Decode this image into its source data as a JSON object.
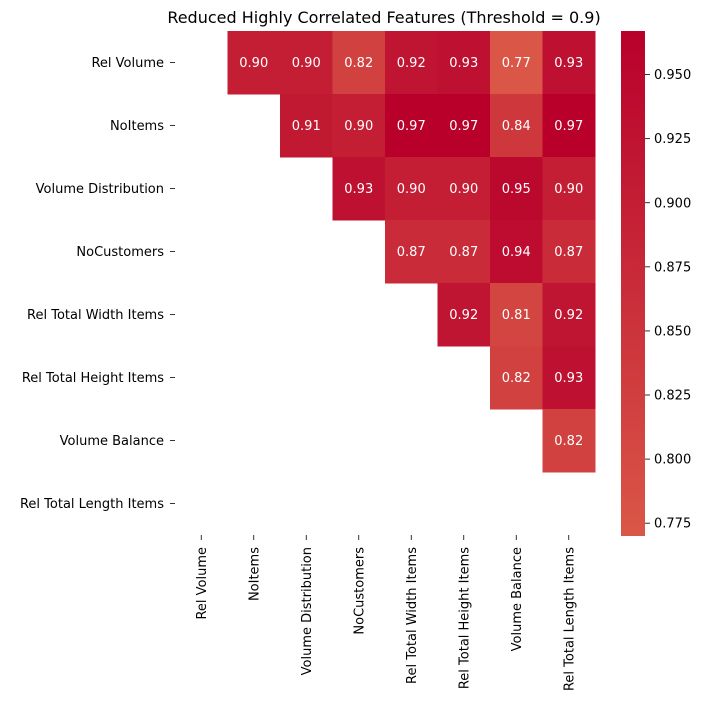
{
  "chart_data": {
    "type": "heatmap",
    "title": "Reduced Highly Correlated Features (Threshold = 0.9)",
    "row_labels": [
      "Rel Volume",
      "NoItems",
      "Volume Distribution",
      "NoCustomers",
      "Rel Total Width Items",
      "Rel Total Height Items",
      "Volume Balance",
      "Rel Total Length Items"
    ],
    "col_labels": [
      "Rel Volume",
      "NoItems",
      "Volume Distribution",
      "NoCustomers",
      "Rel Total Width Items",
      "Rel Total Height Items",
      "Volume Balance",
      "Rel Total Length Items"
    ],
    "values": [
      [
        null,
        0.9,
        0.9,
        0.82,
        0.92,
        0.93,
        0.77,
        0.93
      ],
      [
        null,
        null,
        0.91,
        0.9,
        0.97,
        0.97,
        0.84,
        0.97
      ],
      [
        null,
        null,
        null,
        0.93,
        0.9,
        0.9,
        0.95,
        0.9
      ],
      [
        null,
        null,
        null,
        null,
        0.87,
        0.87,
        0.94,
        0.87
      ],
      [
        null,
        null,
        null,
        null,
        null,
        0.92,
        0.81,
        0.92
      ],
      [
        null,
        null,
        null,
        null,
        null,
        null,
        0.82,
        0.93
      ],
      [
        null,
        null,
        null,
        null,
        null,
        null,
        null,
        0.82
      ],
      [
        null,
        null,
        null,
        null,
        null,
        null,
        null,
        null
      ]
    ],
    "annotation_format": "2 decimals",
    "colorbar": {
      "range": [
        0.77,
        0.967
      ],
      "ticks": [
        "0.775",
        "0.800",
        "0.825",
        "0.850",
        "0.875",
        "0.900",
        "0.925",
        "0.950"
      ],
      "color_low": "#da5747",
      "color_high": "#b8002b"
    },
    "mask": "lower triangle and diagonal"
  }
}
